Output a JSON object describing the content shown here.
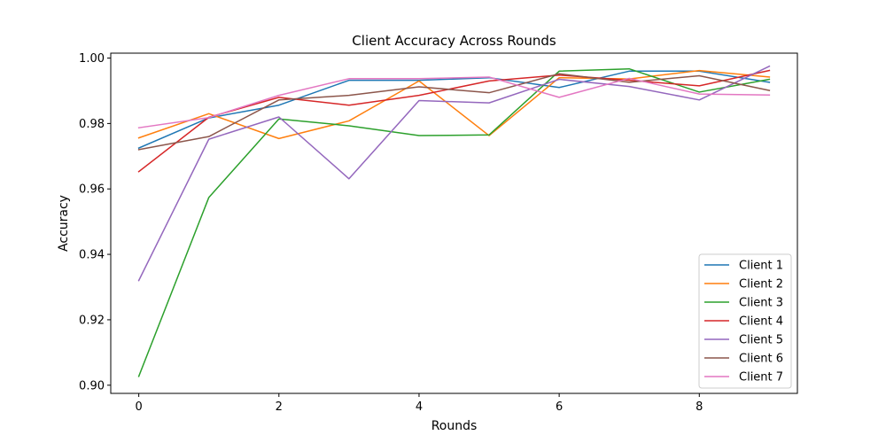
{
  "chart_data": {
    "type": "line",
    "title": "Client Accuracy Across Rounds",
    "xlabel": "Rounds",
    "ylabel": "Accuracy",
    "xlim": [
      -0.4,
      9.4
    ],
    "ylim": [
      0.8975,
      1.0015
    ],
    "xticks": [
      0,
      2,
      4,
      6,
      8
    ],
    "yticks": [
      0.9,
      0.92,
      0.94,
      0.96,
      0.98,
      1.0
    ],
    "ytick_labels": [
      "0.90",
      "0.92",
      "0.94",
      "0.96",
      "0.98",
      "1.00"
    ],
    "grid": false,
    "legend_position": "lower right",
    "x": [
      0,
      1,
      2,
      3,
      4,
      5,
      6,
      7,
      8,
      9
    ],
    "series": [
      {
        "name": "Client 1",
        "color": "#1f77b4",
        "values": [
          0.9725,
          0.9817,
          0.9856,
          0.9932,
          0.9932,
          0.994,
          0.991,
          0.996,
          0.996,
          0.9926
        ]
      },
      {
        "name": "Client 2",
        "color": "#ff7f0e",
        "values": [
          0.9756,
          0.983,
          0.9754,
          0.9808,
          0.993,
          0.9763,
          0.994,
          0.9936,
          0.9962,
          0.9942
        ]
      },
      {
        "name": "Client 3",
        "color": "#2ca02c",
        "values": [
          0.9027,
          0.9574,
          0.9814,
          0.9793,
          0.9763,
          0.9765,
          0.996,
          0.9967,
          0.9896,
          0.9935
        ]
      },
      {
        "name": "Client 4",
        "color": "#d62728",
        "values": [
          0.9653,
          0.9819,
          0.988,
          0.9856,
          0.9886,
          0.993,
          0.9948,
          0.9932,
          0.9915,
          0.9962
        ]
      },
      {
        "name": "Client 5",
        "color": "#9467bd",
        "values": [
          0.932,
          0.9752,
          0.982,
          0.9631,
          0.987,
          0.9863,
          0.9935,
          0.9913,
          0.9872,
          0.9975
        ]
      },
      {
        "name": "Client 6",
        "color": "#8c564b",
        "values": [
          0.972,
          0.976,
          0.9872,
          0.9886,
          0.9912,
          0.9894,
          0.9952,
          0.9926,
          0.9946,
          0.9901
        ]
      },
      {
        "name": "Client 7",
        "color": "#e377c2",
        "values": [
          0.9787,
          0.9818,
          0.9886,
          0.9937,
          0.9937,
          0.9942,
          0.988,
          0.9938,
          0.989,
          0.9887
        ]
      }
    ]
  }
}
